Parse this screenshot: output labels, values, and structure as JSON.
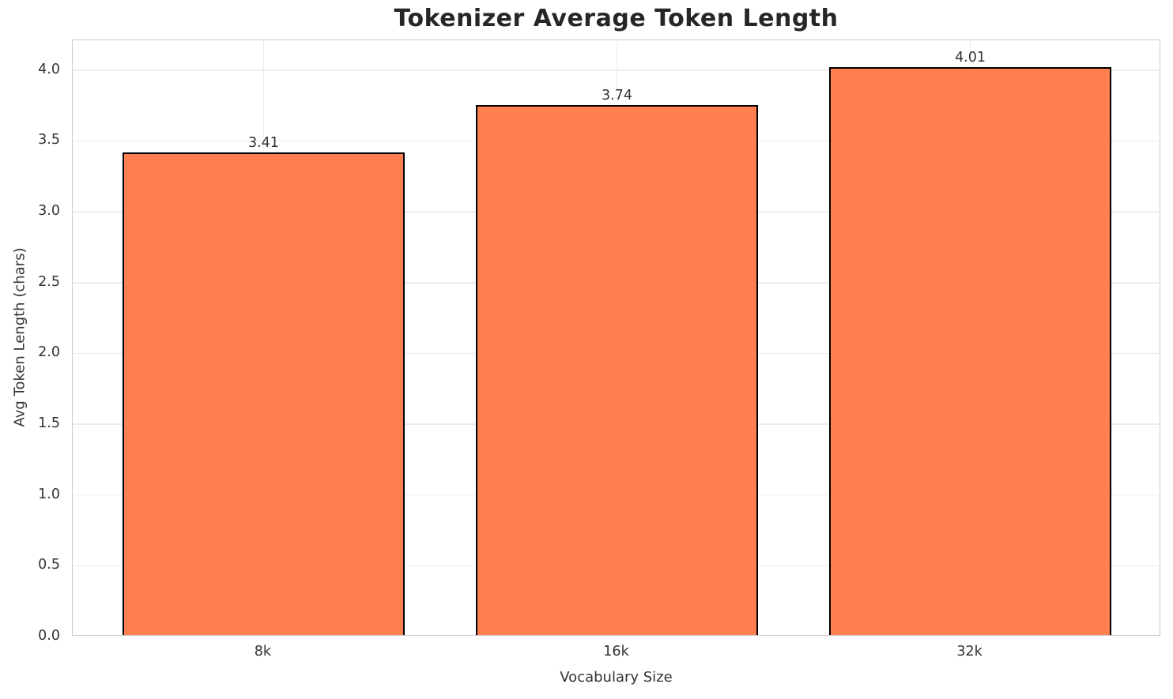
{
  "chart_data": {
    "type": "bar",
    "title": "Tokenizer Average Token Length",
    "xlabel": "Vocabulary Size",
    "ylabel": "Avg Token Length (chars)",
    "categories": [
      "8k",
      "16k",
      "32k"
    ],
    "values": [
      3.41,
      3.74,
      4.01
    ],
    "value_labels": [
      "3.41",
      "3.74",
      "4.01"
    ],
    "yticks": [
      0.0,
      0.5,
      1.0,
      1.5,
      2.0,
      2.5,
      3.0,
      3.5,
      4.0
    ],
    "ytick_labels": [
      "0.0",
      "0.5",
      "1.0",
      "1.5",
      "2.0",
      "2.5",
      "3.0",
      "3.5",
      "4.0"
    ],
    "ylim": [
      0,
      4.2105
    ],
    "xlim": [
      -0.54,
      2.54
    ],
    "bar_width": 0.8,
    "grid": true,
    "legend": "none",
    "colors": {
      "bar_fill": "#FF7F50",
      "bar_edge": "#000000",
      "grid_line": "#ececec",
      "spine": "#cbcbcb",
      "title_text": "#262626",
      "tick_text": "#333333"
    }
  }
}
